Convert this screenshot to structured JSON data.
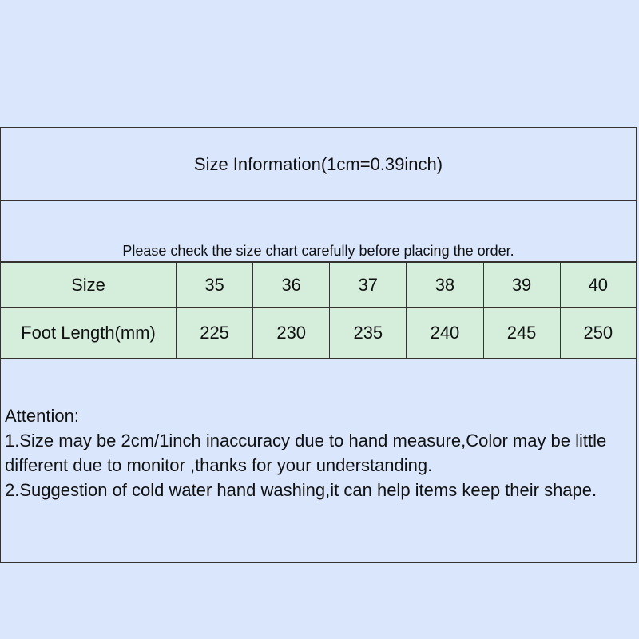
{
  "title": "Size Information(1cm=0.39inch)",
  "note": "Please check the size chart carefully before placing the order.",
  "table": {
    "rows": [
      {
        "label": "Size",
        "values": [
          "35",
          "36",
          "37",
          "38",
          "39",
          "40"
        ]
      },
      {
        "label": "Foot Length(mm)",
        "values": [
          "225",
          "230",
          "235",
          "240",
          "245",
          "250"
        ]
      }
    ]
  },
  "attention": {
    "heading": "Attention:",
    "line1": "1.Size may be 2cm/1inch inaccuracy due to hand measure,Color may be little different due to monitor ,thanks for your understanding.",
    "line2": "2.Suggestion of cold water hand washing,it can help items keep their shape."
  },
  "colors": {
    "background": "#d9e6fc",
    "table_fill": "#d4eedb"
  }
}
